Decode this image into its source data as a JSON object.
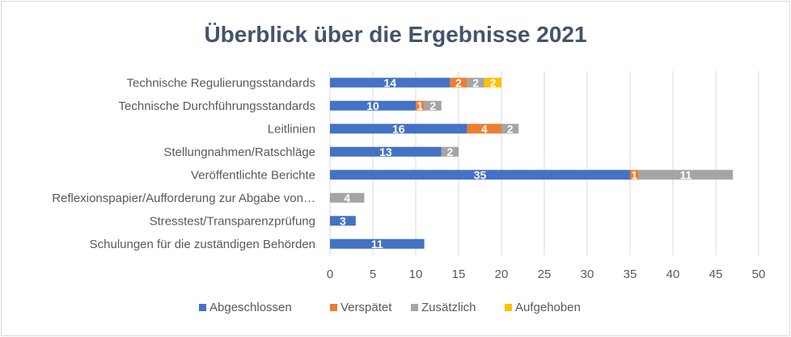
{
  "chart_data": {
    "type": "bar",
    "orientation": "horizontal",
    "stacked": true,
    "title": "Überblick über die Ergebnisse 2021",
    "categories": [
      "Technische Regulierungsstandards",
      "Technische Durchführungsstandards",
      "Leitlinien",
      "Stellungnahmen/Ratschläge",
      "Veröffentlichte Berichte",
      "Reflexionspapier/Aufforderung zur Abgabe von…",
      "Stresstest/Transparenzprüfung",
      "Schulungen für die zuständigen Behörden"
    ],
    "series": [
      {
        "name": "Abgeschlossen",
        "color": "#4472c4",
        "values": [
          14,
          10,
          16,
          13,
          35,
          0,
          3,
          11
        ]
      },
      {
        "name": "Verspätet",
        "color": "#ed7d31",
        "values": [
          2,
          1,
          4,
          0,
          1,
          0,
          0,
          0
        ]
      },
      {
        "name": "Zusätzlich",
        "color": "#a5a5a5",
        "values": [
          2,
          2,
          2,
          2,
          11,
          4,
          0,
          0
        ]
      },
      {
        "name": "Aufgehoben",
        "color": "#ffc000",
        "values": [
          2,
          0,
          0,
          0,
          0,
          0,
          0,
          0
        ]
      }
    ],
    "xlim": [
      0,
      50
    ],
    "xticks": [
      0,
      5,
      10,
      15,
      20,
      25,
      30,
      35,
      40,
      45,
      50
    ],
    "grid": true,
    "legend_position": "bottom",
    "data_labels": true,
    "colors": {
      "title": "#44546a",
      "axis_text": "#595959",
      "gridline": "#d9d9d9",
      "data_label": "#ffffff"
    }
  }
}
